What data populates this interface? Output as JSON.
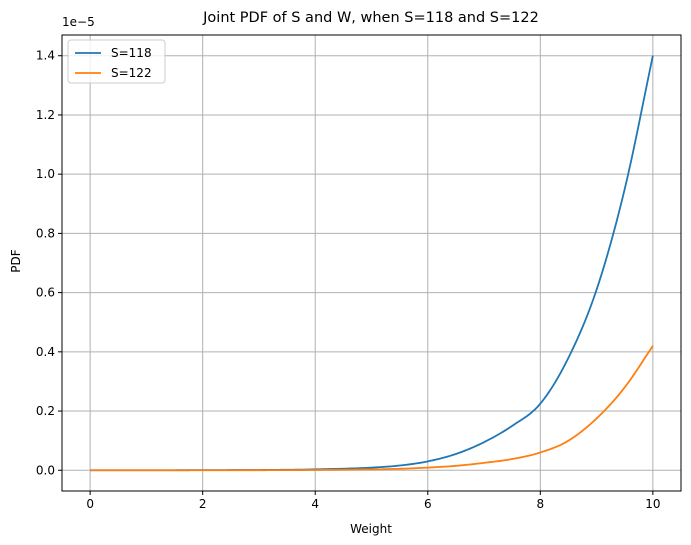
{
  "chart_data": {
    "type": "line",
    "title": "Joint PDF of S and W, when S=118 and S=122",
    "xlabel": "Weight",
    "ylabel": "PDF",
    "y_offset_text": "1e−5",
    "xlim": [
      -0.5,
      10.5
    ],
    "ylim": [
      -0.07,
      1.47
    ],
    "x_ticks": [
      0,
      2,
      4,
      6,
      8,
      10
    ],
    "x_tick_labels": [
      "0",
      "2",
      "4",
      "6",
      "8",
      "10"
    ],
    "y_ticks": [
      0.0,
      0.2,
      0.4,
      0.6,
      0.8,
      1.0,
      1.2,
      1.4
    ],
    "y_tick_labels": [
      "0.0",
      "0.2",
      "0.4",
      "0.6",
      "0.8",
      "1.0",
      "1.2",
      "1.4"
    ],
    "grid": true,
    "legend_position": "top-left",
    "series": [
      {
        "name": "S=118",
        "color": "#1f77b4",
        "x": [
          0,
          1,
          2,
          3,
          4,
          5,
          5.5,
          6,
          6.5,
          7,
          7.5,
          8,
          8.5,
          9,
          9.5,
          10
        ],
        "y": [
          0.0,
          0.0,
          0.0005,
          0.001,
          0.003,
          0.009,
          0.016,
          0.03,
          0.055,
          0.095,
          0.15,
          0.225,
          0.38,
          0.61,
          0.95,
          1.4
        ]
      },
      {
        "name": "S=122",
        "color": "#ff7f0e",
        "x": [
          0,
          1,
          2,
          3,
          4,
          5,
          5.5,
          6,
          6.5,
          7,
          7.5,
          8,
          8.5,
          9,
          9.5,
          10
        ],
        "y": [
          0.0,
          0.0,
          0.0,
          0.0003,
          0.001,
          0.003,
          0.005,
          0.009,
          0.015,
          0.025,
          0.038,
          0.06,
          0.1,
          0.175,
          0.28,
          0.42
        ]
      }
    ]
  }
}
